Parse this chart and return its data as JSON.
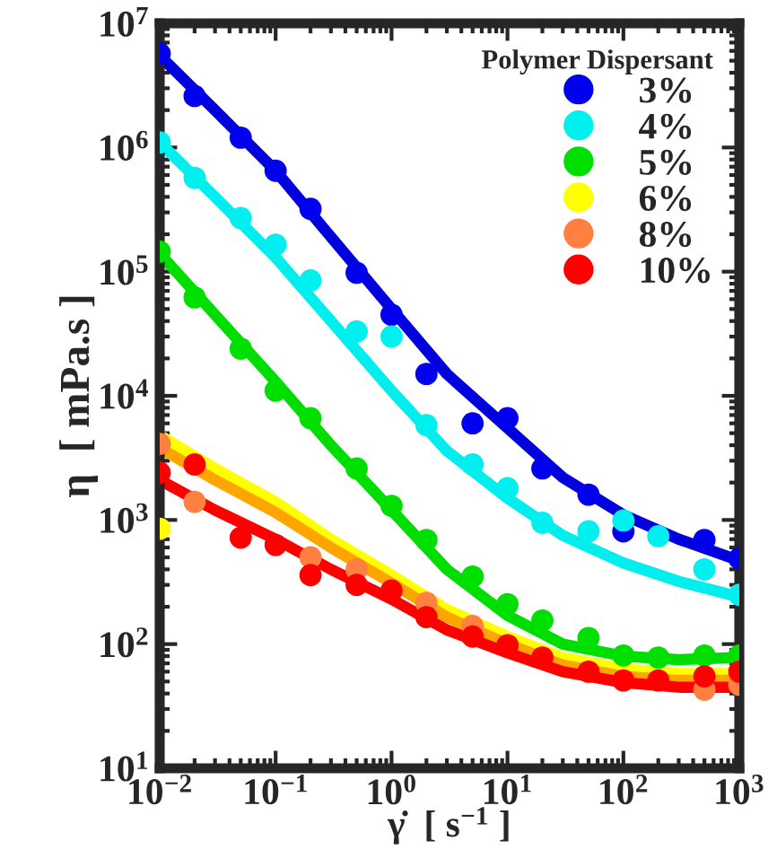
{
  "chart_data": {
    "type": "scatter",
    "xlabel": "γ̇  [ s$^{−1}$ ]",
    "ylabel": "η  [ mPa.s ]",
    "legend_title": "Polymer Dispersant",
    "legend": "top right",
    "log": "xy",
    "grid": false,
    "marker": "circle",
    "x": [
      0.01,
      0.02,
      0.05,
      0.1,
      0.2,
      0.5,
      1,
      2,
      5,
      10,
      20,
      50,
      100,
      200,
      500,
      1000
    ],
    "xlim": [
      0.01,
      1000
    ],
    "ylim": [
      10,
      10000000
    ],
    "xticks": [
      {
        "value": 0.01,
        "label": "10$^{−2}$"
      },
      {
        "value": 0.1,
        "label": "10$^{−1}$"
      },
      {
        "value": 1,
        "label": "10$^{0}$"
      },
      {
        "value": 10,
        "label": "10$^{1}$"
      },
      {
        "value": 100,
        "label": "10$^{2}$"
      },
      {
        "value": 1000,
        "label": "10$^{3}$"
      }
    ],
    "yticks": [
      {
        "value": 10,
        "label": "10$^{1}$"
      },
      {
        "value": 100,
        "label": "10$^{2}$"
      },
      {
        "value": 1000,
        "label": "10$^{3}$"
      },
      {
        "value": 10000,
        "label": "10$^{4}$"
      },
      {
        "value": 100000,
        "label": "10$^{5}$"
      },
      {
        "value": 1000000,
        "label": "10$^{6}$"
      },
      {
        "value": 10000000,
        "label": "10$^{7}$"
      }
    ],
    "series": [
      {
        "type": "line",
        "marker": "none",
        "color": "#0000dd",
        "x": [
          0.01,
          0.03,
          0.1,
          0.3,
          1,
          3,
          10,
          30,
          100,
          300,
          1000
        ],
        "values": [
          5500000,
          2000000,
          650000,
          190000,
          50000,
          15000,
          5500,
          2200,
          1100,
          700,
          470
        ]
      },
      {
        "type": "line",
        "marker": "none",
        "color": "#00eeee",
        "x": [
          0.01,
          0.03,
          0.1,
          0.3,
          1,
          3,
          10,
          30,
          100,
          300,
          1000
        ],
        "values": [
          1100000,
          400000,
          130000,
          40000,
          11000,
          3600,
          1500,
          750,
          450,
          320,
          240
        ]
      },
      {
        "type": "line",
        "marker": "none",
        "color": "#00dd00",
        "x": [
          0.01,
          0.03,
          0.1,
          0.3,
          1,
          3,
          10,
          30,
          100,
          300,
          1000
        ],
        "values": [
          140000,
          45000,
          13000,
          4000,
          1200,
          400,
          170,
          100,
          80,
          75,
          78
        ]
      },
      {
        "type": "line",
        "marker": "none",
        "color": "#ffff00",
        "x": [
          0.01,
          0.03,
          0.1,
          0.3,
          1,
          3,
          10,
          30,
          100,
          300,
          1000
        ],
        "values": [
          4800,
          2600,
          1400,
          700,
          360,
          190,
          115,
          78,
          63,
          58,
          58
        ]
      },
      {
        "type": "line",
        "marker": "none",
        "color": "#ffa500",
        "x": [
          0.01,
          0.03,
          0.1,
          0.3,
          1,
          3,
          10,
          30,
          100,
          300,
          1000
        ],
        "values": [
          3800,
          2100,
          1150,
          600,
          310,
          165,
          100,
          68,
          55,
          51,
          51
        ]
      },
      {
        "type": "line",
        "marker": "none",
        "color": "#ff0000",
        "x": [
          0.01,
          0.03,
          0.1,
          0.3,
          1,
          3,
          10,
          30,
          100,
          300,
          1000
        ],
        "values": [
          2100,
          1200,
          700,
          400,
          230,
          130,
          85,
          60,
          49,
          45,
          45
        ]
      },
      {
        "name": "3%",
        "color": "#0000ee",
        "values": [
          5700000,
          2600000,
          1200000,
          650000,
          320000,
          98000,
          45000,
          15000,
          6000,
          6600,
          2600,
          1600,
          810,
          null,
          690,
          490
        ]
      },
      {
        "name": "4%",
        "color": "#00f0f0",
        "values": [
          1100000,
          570000,
          270000,
          165000,
          85000,
          33000,
          30000,
          5800,
          2800,
          1800,
          950,
          810,
          990,
          740,
          400,
          250
        ]
      },
      {
        "name": "5%",
        "color": "#00e000",
        "values": [
          145000,
          62000,
          24000,
          11000,
          6600,
          2600,
          1300,
          690,
          350,
          210,
          155,
          112,
          81,
          78,
          81,
          81
        ]
      },
      {
        "name": "6%",
        "color": "#ffff00",
        "values": [
          850,
          null,
          null,
          null,
          null,
          null,
          null,
          null,
          null,
          null,
          null,
          null,
          null,
          null,
          null,
          null
        ]
      },
      {
        "name": "8%",
        "color": "#ff8040",
        "values": [
          4100,
          1400,
          null,
          null,
          500,
          400,
          null,
          215,
          140,
          null,
          null,
          null,
          null,
          null,
          43,
          47
        ]
      },
      {
        "name": "10%",
        "color": "#ff0000",
        "values": [
          2400,
          2800,
          720,
          630,
          360,
          300,
          270,
          165,
          115,
          98,
          78,
          60,
          51,
          51,
          55,
          60
        ]
      }
    ]
  }
}
